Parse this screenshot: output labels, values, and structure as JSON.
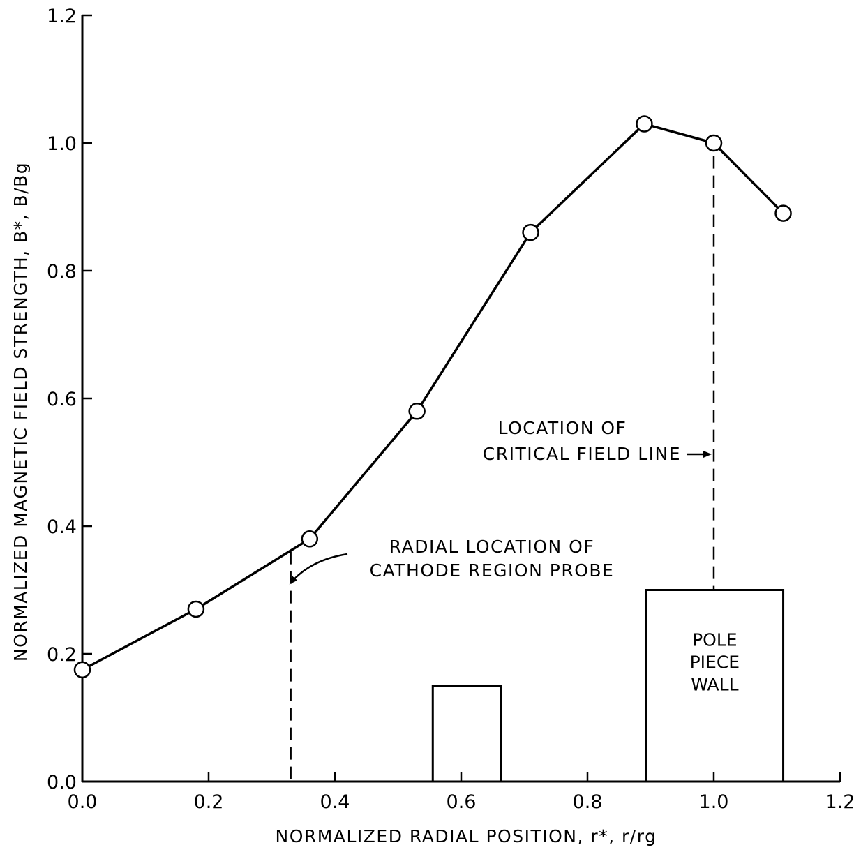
{
  "chart_data": {
    "type": "line",
    "title": "",
    "xlabel": "NORMALIZED RADIAL POSITION, r*, r/rg",
    "ylabel": "NORMALIZED MAGNETIC FIELD STRENGTH, B*, B/Bg",
    "xlim": [
      0,
      1.2
    ],
    "ylim": [
      0,
      1.2
    ],
    "x_ticks": [
      "0.0",
      "0.2",
      "0.4",
      "0.6",
      "0.8",
      "1.0",
      "1.2"
    ],
    "y_ticks": [
      "0.0",
      "0.2",
      "0.4",
      "0.6",
      "0.8",
      "1.0",
      "1.2"
    ],
    "grid": false,
    "series": [
      {
        "marker": "open-circle",
        "x": [
          0.0,
          0.18,
          0.36,
          0.53,
          0.71,
          0.89,
          1.0,
          1.11
        ],
        "y": [
          0.175,
          0.27,
          0.38,
          0.58,
          0.86,
          1.03,
          1.0,
          0.89
        ]
      }
    ],
    "reference_lines": [
      {
        "x": 0.33,
        "y_top": 0.36,
        "style": "dashed"
      },
      {
        "x": 1.0,
        "y_top": 0.995,
        "style": "dashed"
      }
    ],
    "shapes": [
      {
        "x0": 0.555,
        "x1": 0.663,
        "y0": 0.0,
        "y1": 0.15,
        "label_lines": []
      },
      {
        "x0": 0.893,
        "x1": 1.11,
        "y0": 0.0,
        "y1": 0.3,
        "label_lines": [
          "POLE",
          "PIECE",
          "WALL"
        ]
      }
    ],
    "annotations": [
      {
        "lines": [
          "RADIAL LOCATION OF",
          "CATHODE REGION PROBE"
        ],
        "points_to_x": 0.33
      },
      {
        "lines": [
          "LOCATION OF",
          "CRITICAL FIELD LINE"
        ],
        "points_to_x": 1.0
      }
    ]
  }
}
